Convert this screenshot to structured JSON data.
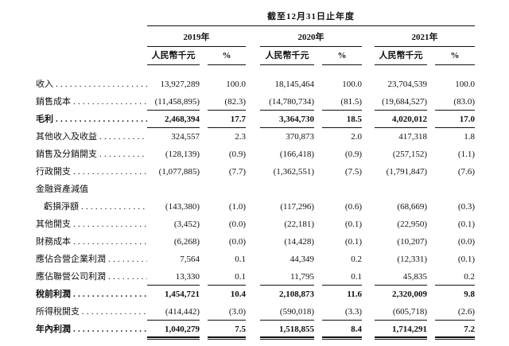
{
  "table": {
    "period_header": "截至12月31日止年度",
    "years": [
      "2019年",
      "2020年",
      "2021年"
    ],
    "col_headers": [
      "人民幣千元",
      "%",
      "人民幣千元",
      "%",
      "人民幣千元",
      "%"
    ],
    "rows": [
      {
        "label": "收入",
        "dots": true,
        "bold": false,
        "indent": false,
        "underline": "none",
        "values": [
          "13,927,289",
          "100.0",
          "18,145,464",
          "100.0",
          "23,704,539",
          "100.0"
        ]
      },
      {
        "label": "銷售成本",
        "dots": true,
        "bold": false,
        "indent": false,
        "underline": "single",
        "values": [
          "(11,458,895)",
          "(82.3)",
          "(14,780,734)",
          "(81.5)",
          "(19,684,527)",
          "(83.0)"
        ]
      },
      {
        "label": "毛利",
        "dots": true,
        "bold": true,
        "indent": false,
        "underline": "single",
        "values": [
          "2,468,394",
          "17.7",
          "3,364,730",
          "18.5",
          "4,020,012",
          "17.0"
        ]
      },
      {
        "label": "其他收入及收益",
        "dots": true,
        "bold": false,
        "indent": false,
        "underline": "none",
        "values": [
          "324,557",
          "2.3",
          "370,873",
          "2.0",
          "417,318",
          "1.8"
        ]
      },
      {
        "label": "銷售及分銷開支",
        "dots": true,
        "bold": false,
        "indent": false,
        "underline": "none",
        "values": [
          "(128,139)",
          "(0.9)",
          "(166,418)",
          "(0.9)",
          "(257,152)",
          "(1.1)"
        ]
      },
      {
        "label": "行政開支",
        "dots": true,
        "bold": false,
        "indent": false,
        "underline": "none",
        "values": [
          "(1,077,885)",
          "(7.7)",
          "(1,362,551)",
          "(7.5)",
          "(1,791,847)",
          "(7.6)"
        ]
      },
      {
        "label": "金融資產減值",
        "dots": false,
        "bold": false,
        "indent": false,
        "underline": "none",
        "values": [
          "",
          "",
          "",
          "",
          "",
          ""
        ]
      },
      {
        "label": "虧損淨額",
        "dots": true,
        "bold": false,
        "indent": true,
        "underline": "none",
        "values": [
          "(143,380)",
          "(1.0)",
          "(117,296)",
          "(0.6)",
          "(68,669)",
          "(0.3)"
        ]
      },
      {
        "label": "其他開支",
        "dots": true,
        "bold": false,
        "indent": false,
        "underline": "none",
        "values": [
          "(3,452)",
          "(0.0)",
          "(22,181)",
          "(0.1)",
          "(22,950)",
          "(0.1)"
        ]
      },
      {
        "label": "財務成本",
        "dots": true,
        "bold": false,
        "indent": false,
        "underline": "none",
        "values": [
          "(6,268)",
          "(0.0)",
          "(14,428)",
          "(0.1)",
          "(10,207)",
          "(0.0)"
        ]
      },
      {
        "label": "應佔合營企業利潤",
        "dots": true,
        "bold": false,
        "indent": false,
        "underline": "none",
        "values": [
          "7,564",
          "0.1",
          "44,349",
          "0.2",
          "(12,331)",
          "(0.1)"
        ]
      },
      {
        "label": "應佔聯營公司利潤",
        "dots": true,
        "bold": false,
        "indent": false,
        "underline": "single",
        "values": [
          "13,330",
          "0.1",
          "11,795",
          "0.1",
          "45,835",
          "0.2"
        ]
      },
      {
        "label": "稅前利潤",
        "dots": true,
        "bold": true,
        "indent": false,
        "underline": "none",
        "values": [
          "1,454,721",
          "10.4",
          "2,108,873",
          "11.6",
          "2,320,009",
          "9.8"
        ]
      },
      {
        "label": "所得稅開支",
        "dots": true,
        "bold": false,
        "indent": false,
        "underline": "single",
        "values": [
          "(414,442)",
          "(3.0)",
          "(590,018)",
          "(3.3)",
          "(605,718)",
          "(2.6)"
        ]
      },
      {
        "label": "年內利潤",
        "dots": true,
        "bold": true,
        "indent": false,
        "underline": "double",
        "values": [
          "1,040,279",
          "7.5",
          "1,518,855",
          "8.4",
          "1,714,291",
          "7.2"
        ]
      }
    ]
  },
  "colors": {
    "text": "#111111",
    "line": "#111111",
    "background": "#ffffff"
  }
}
